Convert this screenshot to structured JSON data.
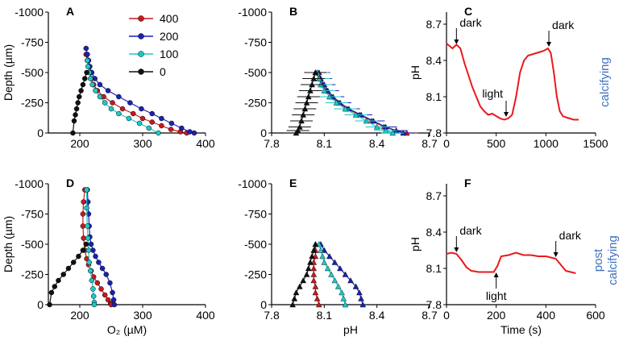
{
  "figure": {
    "colors": {
      "s400": "#c8191e",
      "s200": "#1a22b5",
      "s100": "#1ec8c8",
      "s0": "#111111",
      "trace": "#e8191e",
      "side": "#3f70c0"
    }
  },
  "chart_data": [
    {
      "panel": "A",
      "type": "line",
      "ylabel": "Depth (µm)",
      "xlabel": "",
      "xlim": [
        150,
        400
      ],
      "ylim": [
        -1000,
        0
      ],
      "xticks": [
        200,
        300,
        400
      ],
      "yticks": [
        -1000,
        -750,
        -500,
        -250,
        0
      ],
      "legend": [
        "400",
        "200",
        "100",
        "0"
      ],
      "series": [
        {
          "name": "400",
          "x": [
            210,
            212,
            214,
            216,
            218,
            222,
            228,
            238,
            252,
            268,
            285,
            300,
            315,
            330,
            345,
            360,
            370
          ],
          "y": [
            -650,
            -600,
            -550,
            -500,
            -450,
            -400,
            -350,
            -300,
            -250,
            -200,
            -160,
            -120,
            -90,
            -60,
            -30,
            -10,
            0
          ]
        },
        {
          "name": "200",
          "x": [
            210,
            212,
            214,
            216,
            219,
            224,
            232,
            245,
            262,
            280,
            298,
            315,
            330,
            346,
            362,
            375,
            382
          ],
          "y": [
            -700,
            -650,
            -600,
            -550,
            -500,
            -450,
            -400,
            -350,
            -300,
            -250,
            -200,
            -160,
            -120,
            -80,
            -40,
            -10,
            0
          ]
        },
        {
          "name": "100",
          "x": [
            212,
            213,
            215,
            217,
            220,
            225,
            232,
            240,
            250,
            262,
            278,
            295,
            310,
            325
          ],
          "y": [
            -600,
            -550,
            -500,
            -450,
            -400,
            -350,
            -300,
            -250,
            -200,
            -160,
            -120,
            -80,
            -40,
            0
          ]
        },
        {
          "name": "0",
          "x": [
            211,
            208,
            205,
            202,
            199,
            197,
            195,
            193,
            191,
            189
          ],
          "y": [
            -500,
            -450,
            -400,
            -350,
            -300,
            -250,
            -200,
            -150,
            -100,
            0
          ]
        }
      ]
    },
    {
      "panel": "B",
      "type": "line",
      "ylabel": "",
      "xlabel": "",
      "xlim": [
        7.8,
        8.7
      ],
      "ylim": [
        -1000,
        0
      ],
      "xticks": [
        7.8,
        8.1,
        8.4,
        8.7
      ],
      "yticks": [
        -1000,
        -750,
        -500,
        -250,
        0
      ],
      "series": [
        {
          "name": "400",
          "x": [
            8.05,
            8.07,
            8.09,
            8.11,
            8.14,
            8.18,
            8.23,
            8.3,
            8.37,
            8.44,
            8.51,
            8.57
          ],
          "y": [
            -500,
            -450,
            -400,
            -350,
            -300,
            -250,
            -200,
            -150,
            -100,
            -50,
            -20,
            0
          ]
        },
        {
          "name": "200",
          "x": [
            8.07,
            8.08,
            8.1,
            8.12,
            8.15,
            8.19,
            8.24,
            8.31,
            8.38,
            8.45,
            8.51,
            8.55
          ],
          "y": [
            -500,
            -450,
            -400,
            -350,
            -300,
            -250,
            -200,
            -150,
            -100,
            -50,
            -20,
            0
          ]
        },
        {
          "name": "100",
          "x": [
            8.06,
            8.07,
            8.08,
            8.1,
            8.13,
            8.17,
            8.22,
            8.28,
            8.34,
            8.4,
            8.45,
            8.49
          ],
          "y": [
            -500,
            -450,
            -400,
            -350,
            -300,
            -250,
            -200,
            -150,
            -100,
            -50,
            -20,
            0
          ]
        },
        {
          "name": "0",
          "x": [
            8.05,
            8.04,
            8.03,
            8.02,
            8.01,
            8.0,
            7.99,
            7.98,
            7.97,
            7.96,
            7.95,
            7.94
          ],
          "y": [
            -500,
            -450,
            -400,
            -350,
            -300,
            -250,
            -200,
            -150,
            -100,
            -50,
            -20,
            0
          ]
        }
      ]
    },
    {
      "panel": "C",
      "type": "line",
      "ylabel": "pH",
      "xlabel": "",
      "xlim": [
        0,
        1500
      ],
      "ylim": [
        7.8,
        8.8
      ],
      "xticks": [
        0,
        500,
        1000,
        1500
      ],
      "yticks": [
        7.8,
        8.1,
        8.4,
        8.7
      ],
      "side_label": "calcifying",
      "annotations": [
        {
          "text": "dark",
          "x": 100,
          "y": 8.52
        },
        {
          "text": "light",
          "x": 600,
          "y": 7.92
        },
        {
          "text": "dark",
          "x": 1030,
          "y": 8.5
        }
      ],
      "series": [
        {
          "name": "pH",
          "x": [
            0,
            30,
            60,
            100,
            140,
            180,
            220,
            260,
            300,
            340,
            380,
            420,
            460,
            500,
            540,
            580,
            620,
            660,
            700,
            740,
            780,
            820,
            860,
            900,
            940,
            980,
            1020,
            1050,
            1080,
            1110,
            1140,
            1170,
            1200,
            1240,
            1280,
            1330
          ],
          "y": [
            8.54,
            8.52,
            8.5,
            8.53,
            8.5,
            8.38,
            8.28,
            8.18,
            8.1,
            8.02,
            7.98,
            7.95,
            7.96,
            7.94,
            7.92,
            7.91,
            7.92,
            7.95,
            8.1,
            8.3,
            8.4,
            8.44,
            8.45,
            8.46,
            8.47,
            8.48,
            8.5,
            8.46,
            8.3,
            8.1,
            7.98,
            7.94,
            7.93,
            7.92,
            7.91,
            7.91
          ]
        }
      ]
    },
    {
      "panel": "D",
      "type": "line",
      "ylabel": "Depth (µm)",
      "xlabel": "O₂ (µM)",
      "xlim": [
        150,
        400
      ],
      "ylim": [
        -1000,
        0
      ],
      "xticks": [
        200,
        300,
        400
      ],
      "yticks": [
        -1000,
        -750,
        -500,
        -250,
        0
      ],
      "series": [
        {
          "name": "400",
          "x": [
            208,
            206,
            205,
            205,
            206,
            208,
            211,
            214,
            218,
            222,
            228,
            234,
            240,
            245,
            249,
            250
          ],
          "y": [
            -950,
            -850,
            -750,
            -650,
            -550,
            -450,
            -380,
            -330,
            -280,
            -230,
            -180,
            -130,
            -80,
            -40,
            -10,
            0
          ]
        },
        {
          "name": "200",
          "x": [
            212,
            213,
            214,
            215,
            216,
            218,
            221,
            225,
            230,
            236,
            242,
            248,
            252,
            254,
            255
          ],
          "y": [
            -950,
            -850,
            -750,
            -650,
            -560,
            -500,
            -450,
            -400,
            -350,
            -300,
            -250,
            -180,
            -100,
            -40,
            0
          ]
        },
        {
          "name": "100",
          "x": [
            211,
            211,
            212,
            213,
            214,
            215,
            217,
            219,
            221,
            222,
            223,
            223
          ],
          "y": [
            -950,
            -800,
            -650,
            -550,
            -450,
            -350,
            -280,
            -200,
            -130,
            -70,
            -20,
            0
          ]
        },
        {
          "name": "0",
          "x": [
            210,
            205,
            198,
            190,
            182,
            174,
            166,
            160,
            155,
            152
          ],
          "y": [
            -500,
            -450,
            -400,
            -350,
            -300,
            -250,
            -200,
            -150,
            -100,
            0
          ]
        }
      ]
    },
    {
      "panel": "E",
      "type": "line",
      "ylabel": "",
      "xlabel": "pH",
      "xlim": [
        7.8,
        8.7
      ],
      "ylim": [
        -1000,
        0
      ],
      "xticks": [
        7.8,
        8.1,
        8.4,
        8.7
      ],
      "yticks": [
        -1000,
        -750,
        -500,
        -250,
        0
      ],
      "series": [
        {
          "name": "400",
          "x": [
            8.05,
            8.05,
            8.05,
            8.04,
            8.04,
            8.04,
            8.04,
            8.05,
            8.05,
            8.06,
            8.07
          ],
          "y": [
            -500,
            -450,
            -400,
            -350,
            -300,
            -250,
            -200,
            -150,
            -100,
            -50,
            0
          ]
        },
        {
          "name": "200",
          "x": [
            8.08,
            8.1,
            8.13,
            8.16,
            8.19,
            8.22,
            8.25,
            8.28,
            8.3,
            8.31,
            8.32
          ],
          "y": [
            -500,
            -450,
            -400,
            -350,
            -300,
            -250,
            -200,
            -150,
            -100,
            -50,
            0
          ]
        },
        {
          "name": "100",
          "x": [
            8.07,
            8.08,
            8.09,
            8.1,
            8.12,
            8.14,
            8.16,
            8.18,
            8.2,
            8.21,
            8.22
          ],
          "y": [
            -500,
            -450,
            -400,
            -350,
            -300,
            -250,
            -200,
            -150,
            -100,
            -50,
            0
          ]
        },
        {
          "name": "0",
          "x": [
            8.05,
            8.04,
            8.03,
            8.02,
            8.01,
            8.0,
            7.98,
            7.96,
            7.94,
            7.93,
            7.92
          ],
          "y": [
            -500,
            -450,
            -400,
            -350,
            -300,
            -250,
            -200,
            -150,
            -100,
            -50,
            0
          ]
        }
      ]
    },
    {
      "panel": "F",
      "type": "line",
      "ylabel": "pH",
      "xlabel": "Time (s)",
      "xlim": [
        0,
        600
      ],
      "ylim": [
        7.8,
        8.8
      ],
      "xticks": [
        0,
        200,
        400,
        600
      ],
      "yticks": [
        7.8,
        8.1,
        8.4,
        8.7
      ],
      "side_label": "post calcifying",
      "annotations": [
        {
          "text": "dark",
          "x": 40,
          "y": 8.22
        },
        {
          "text": "light",
          "x": 200,
          "y": 8.08
        },
        {
          "text": "dark",
          "x": 440,
          "y": 8.18
        }
      ],
      "series": [
        {
          "name": "pH",
          "x": [
            0,
            20,
            40,
            60,
            80,
            100,
            130,
            160,
            190,
            205,
            220,
            250,
            280,
            310,
            340,
            370,
            400,
            420,
            440,
            460,
            480,
            500,
            520
          ],
          "y": [
            8.22,
            8.23,
            8.22,
            8.17,
            8.11,
            8.08,
            8.07,
            8.07,
            8.07,
            8.12,
            8.2,
            8.21,
            8.23,
            8.21,
            8.21,
            8.2,
            8.2,
            8.19,
            8.18,
            8.13,
            8.08,
            8.07,
            8.06
          ]
        }
      ]
    }
  ]
}
